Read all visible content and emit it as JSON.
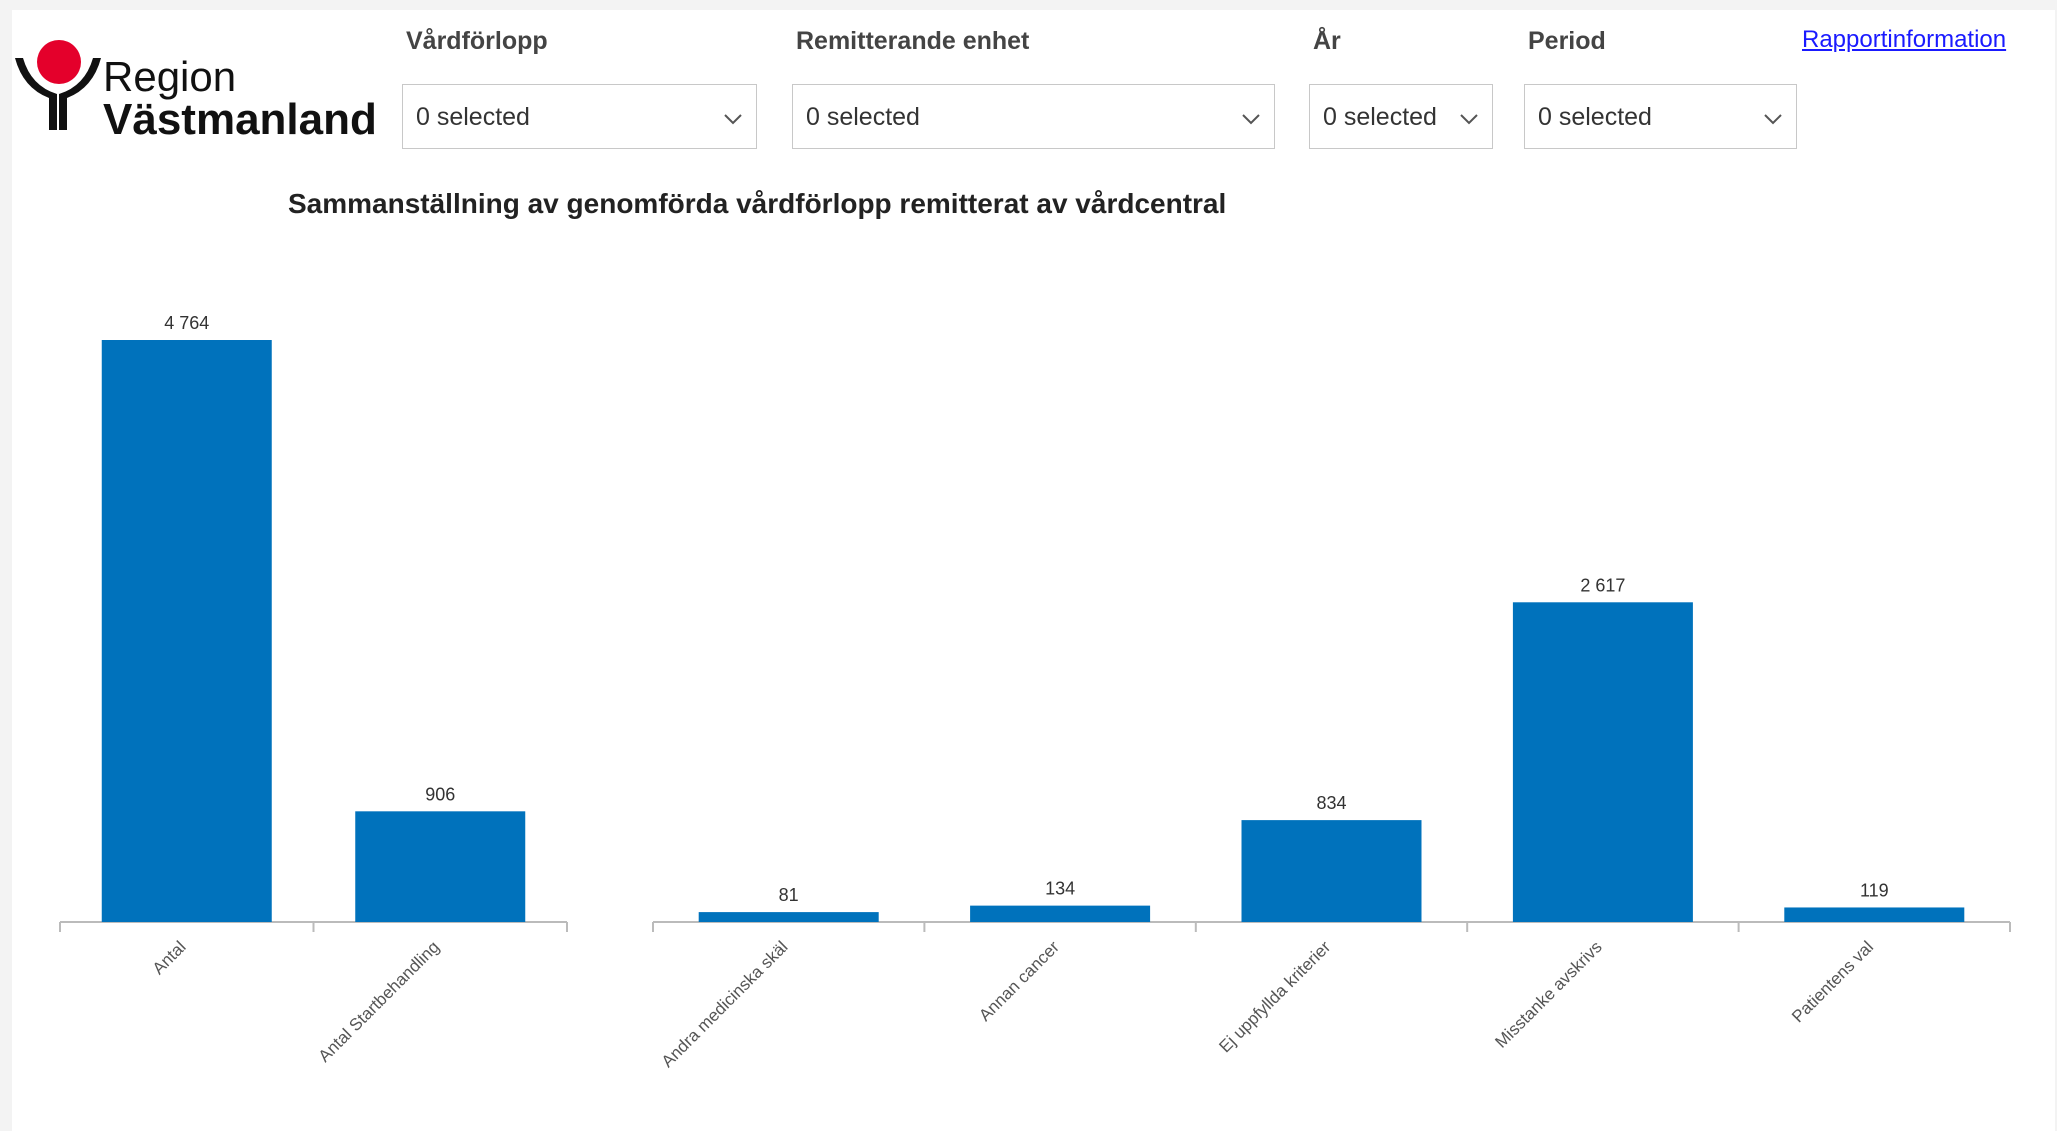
{
  "brand": {
    "line1": "Region",
    "line2": "Västmanland",
    "accent_color": "#e4002b"
  },
  "filters": [
    {
      "label": "Vårdförlopp",
      "value": "0 selected",
      "icon": "chevron-down-icon"
    },
    {
      "label": "Remitterande enhet",
      "value": "0 selected",
      "icon": "chevron-down-icon"
    },
    {
      "label": "År",
      "value": "0 selected",
      "icon": "chevron-down-icon"
    },
    {
      "label": "Period",
      "value": "0 selected",
      "icon": "chevron-down-icon"
    }
  ],
  "report_link": "Rapportinformation",
  "chart_data": [
    {
      "type": "bar",
      "title": "Sammanställning av genomförda vårdförlopp remitterat av vårdcentral",
      "categories": [
        "Antal",
        "Antal Startbehandling"
      ],
      "values": [
        4764,
        906
      ],
      "value_labels": [
        "4 764",
        "906"
      ],
      "color": "#0072bc",
      "xlabel": "",
      "ylabel": ""
    },
    {
      "type": "bar",
      "title": "",
      "categories": [
        "Andra medicinska skäl",
        "Annan cancer",
        "Ej uppfyllda kriterier",
        "Misstanke avskrivs",
        "Patientens val"
      ],
      "values": [
        81,
        134,
        834,
        2617,
        119
      ],
      "value_labels": [
        "81",
        "134",
        "834",
        "2 617",
        "119"
      ],
      "color": "#0072bc",
      "xlabel": "",
      "ylabel": ""
    }
  ]
}
